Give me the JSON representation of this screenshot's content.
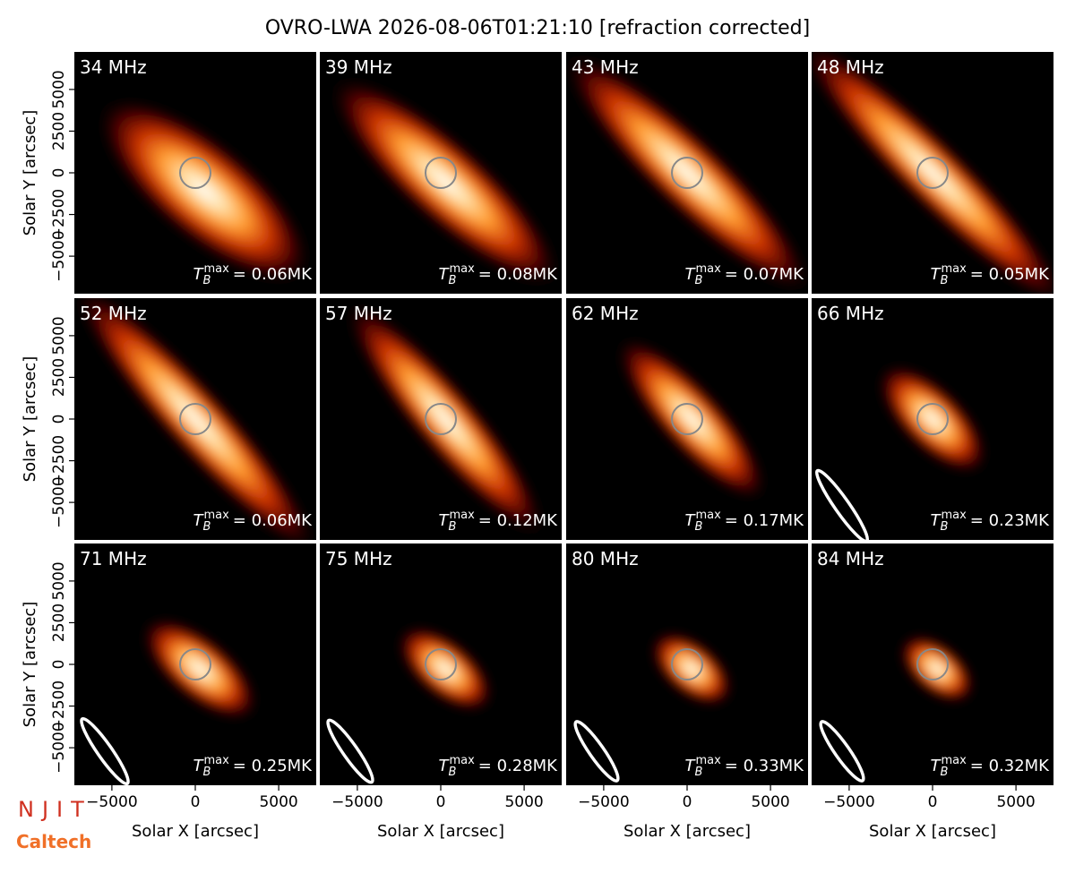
{
  "title": "OVRO-LWA 2026-08-06T01:21:10 [refraction corrected]",
  "axes": {
    "xlabel": "Solar X [arcsec]",
    "ylabel": "Solar Y [arcsec]",
    "xlim": [
      -7250,
      7250
    ],
    "ylim": [
      -7250,
      7250
    ],
    "xticks": [
      {
        "value": -5000,
        "label": "−5000"
      },
      0,
      5000
    ],
    "yticks": [
      {
        "value": -5000,
        "label": "−5000"
      },
      {
        "value": -2500,
        "label": "−2500"
      },
      0,
      2500,
      5000
    ]
  },
  "tmax_symbol": "T",
  "tmax_sub": "B",
  "tmax_sup": "max",
  "tmax_eq": "= ",
  "logos": {
    "njit": "NJIT",
    "caltech": "Caltech"
  },
  "chart_data": [
    {
      "type": "image",
      "title": "34 MHz",
      "tmax": "0.06MK"
    },
    {
      "type": "image",
      "title": "39 MHz",
      "tmax": "0.08MK"
    },
    {
      "type": "image",
      "title": "43 MHz",
      "tmax": "0.07MK"
    },
    {
      "type": "image",
      "title": "48 MHz",
      "tmax": "0.05MK"
    },
    {
      "type": "image",
      "title": "52 MHz",
      "tmax": "0.06MK"
    },
    {
      "type": "image",
      "title": "57 MHz",
      "tmax": "0.12MK"
    },
    {
      "type": "image",
      "title": "62 MHz",
      "tmax": "0.17MK"
    },
    {
      "type": "image",
      "title": "66 MHz",
      "tmax": "0.23MK"
    },
    {
      "type": "image",
      "title": "71 MHz",
      "tmax": "0.25MK"
    },
    {
      "type": "image",
      "title": "75 MHz",
      "tmax": "0.28MK"
    },
    {
      "type": "image",
      "title": "80 MHz",
      "tmax": "0.33MK"
    },
    {
      "type": "image",
      "title": "84 MHz",
      "tmax": "0.32MK"
    }
  ]
}
